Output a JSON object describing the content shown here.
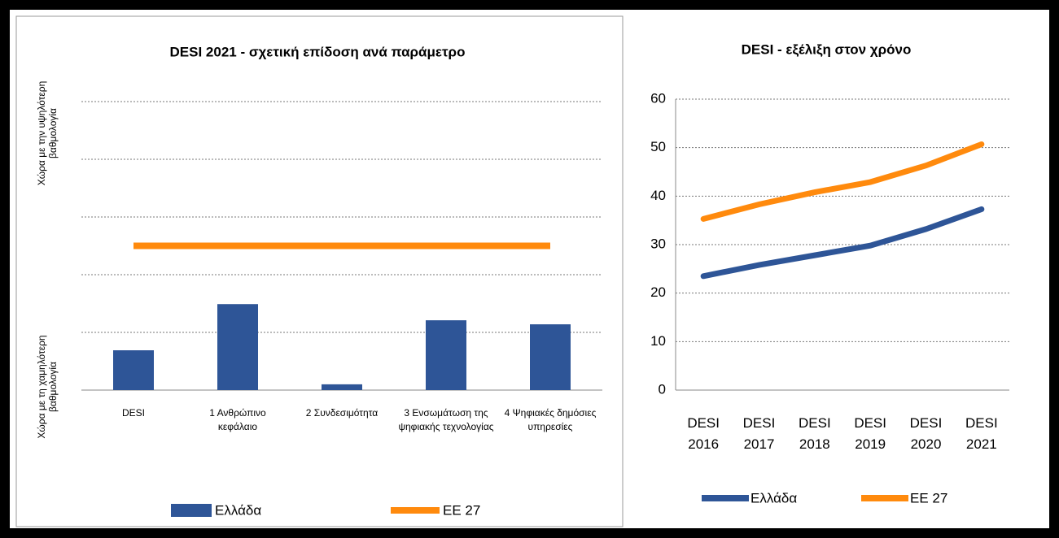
{
  "chart_data": [
    {
      "type": "bar",
      "title": "DESI 2021 - σχετική επίδοση ανά παράμετρο",
      "y_label_top": "Χώρα με την υψηλότερη βαθμολογία",
      "y_label_bottom": "Χώρα με τη χαμηλότερη βαθμολογία",
      "categories": [
        "DESI",
        "1 Ανθρώπινο κεφάλαιο",
        "2 Συνδεσιμότητα",
        "3 Ενσωμάτωση της ψηφιακής τεχνολογίας",
        "4 Ψηφιακές δημόσιες υπηρεσίες"
      ],
      "series": [
        {
          "name": "Ελλάδα",
          "kind": "bar",
          "color": "#2e5597",
          "values": [
            0.69,
            1.49,
            0.1,
            1.21,
            1.14
          ]
        },
        {
          "name": "ΕΕ 27",
          "kind": "line",
          "color": "#ff8a0d",
          "values": [
            2.5,
            2.5,
            2.5,
            2.5,
            2.5
          ]
        }
      ],
      "ylim": [
        0,
        5
      ],
      "grid_lines": [
        1,
        2,
        3,
        4,
        5
      ]
    },
    {
      "type": "line",
      "title": "DESI - εξέλιξη στον χρόνο",
      "categories": [
        "DESI 2016",
        "DESI 2017",
        "DESI 2018",
        "DESI 2019",
        "DESI 2020",
        "DESI 2021"
      ],
      "series": [
        {
          "name": "Ελλάδα",
          "color": "#2e5597",
          "values": [
            23.5,
            25.8,
            27.8,
            29.8,
            33.2,
            37.3
          ]
        },
        {
          "name": "ΕΕ 27",
          "color": "#ff8a0d",
          "values": [
            35.3,
            38.3,
            40.8,
            42.9,
            46.3,
            50.7
          ]
        }
      ],
      "ylim": [
        0,
        60
      ],
      "yticks": [
        0,
        10,
        20,
        30,
        40,
        50,
        60
      ],
      "grid": true
    }
  ]
}
